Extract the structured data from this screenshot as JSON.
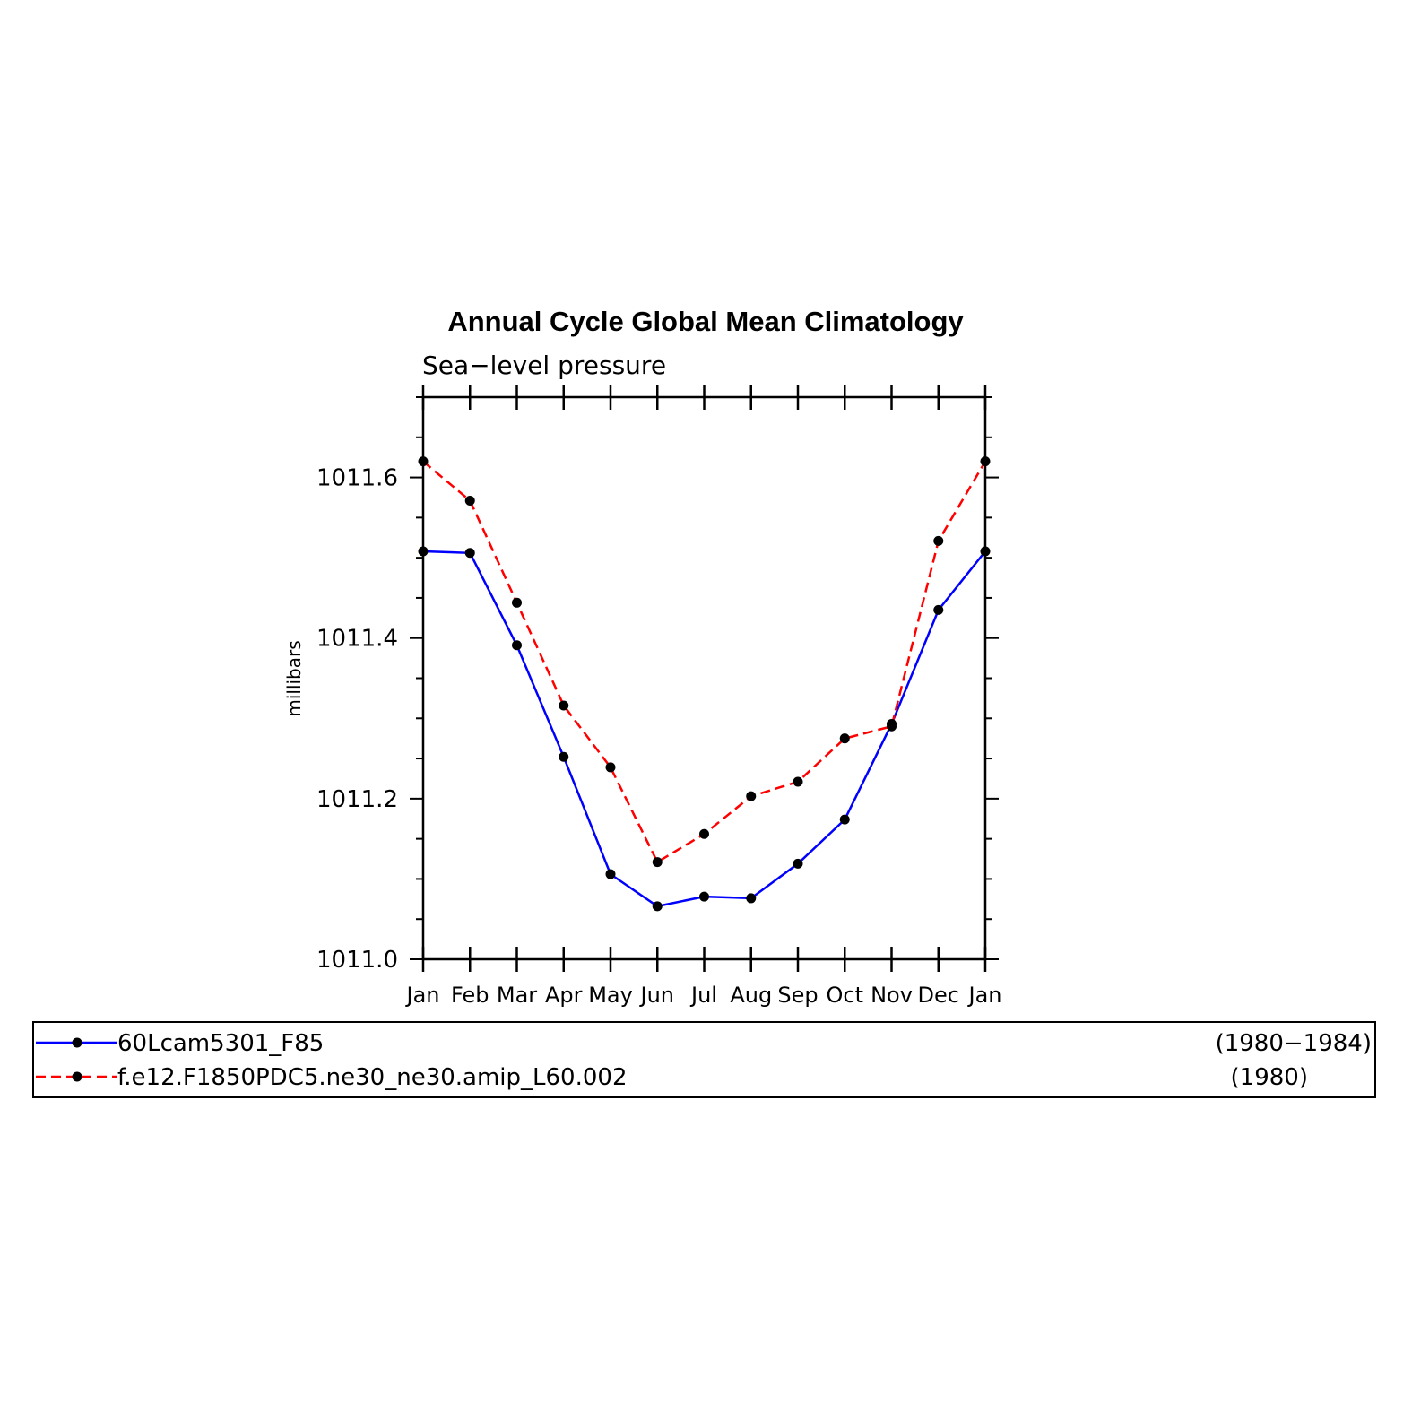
{
  "chart_data": {
    "type": "line",
    "title": "Annual Cycle Global Mean Climatology",
    "subtitle": "Sea−level pressure",
    "xlabel": "",
    "ylabel": "millibars",
    "categories": [
      "Jan",
      "Feb",
      "Mar",
      "Apr",
      "May",
      "Jun",
      "Jul",
      "Aug",
      "Sep",
      "Oct",
      "Nov",
      "Dec",
      "Jan"
    ],
    "ylim": [
      1011.0,
      1011.7
    ],
    "yticks": [
      1011.0,
      1011.2,
      1011.4,
      1011.6
    ],
    "ytick_labels": [
      "1011.0",
      "1011.2",
      "1011.4",
      "1011.6"
    ],
    "series": [
      {
        "name": "60Lcam5301_F85",
        "period": "(1980−1984)",
        "color": "#0000ff",
        "style": "solid",
        "values": [
          1011.508,
          1011.506,
          1011.391,
          1011.252,
          1011.106,
          1011.066,
          1011.078,
          1011.076,
          1011.119,
          1011.174,
          1011.293,
          1011.435,
          1011.508
        ]
      },
      {
        "name": "f.e12.F1850PDC5.ne30_ne30.amip_L60.002",
        "period": "(1980)",
        "color": "#ff0000",
        "style": "dashed",
        "values": [
          1011.62,
          1011.571,
          1011.444,
          1011.316,
          1011.239,
          1011.121,
          1011.156,
          1011.203,
          1011.221,
          1011.275,
          1011.29,
          1011.521,
          1011.62
        ]
      }
    ],
    "marker_color": "#000000",
    "legend_placement": "below"
  }
}
